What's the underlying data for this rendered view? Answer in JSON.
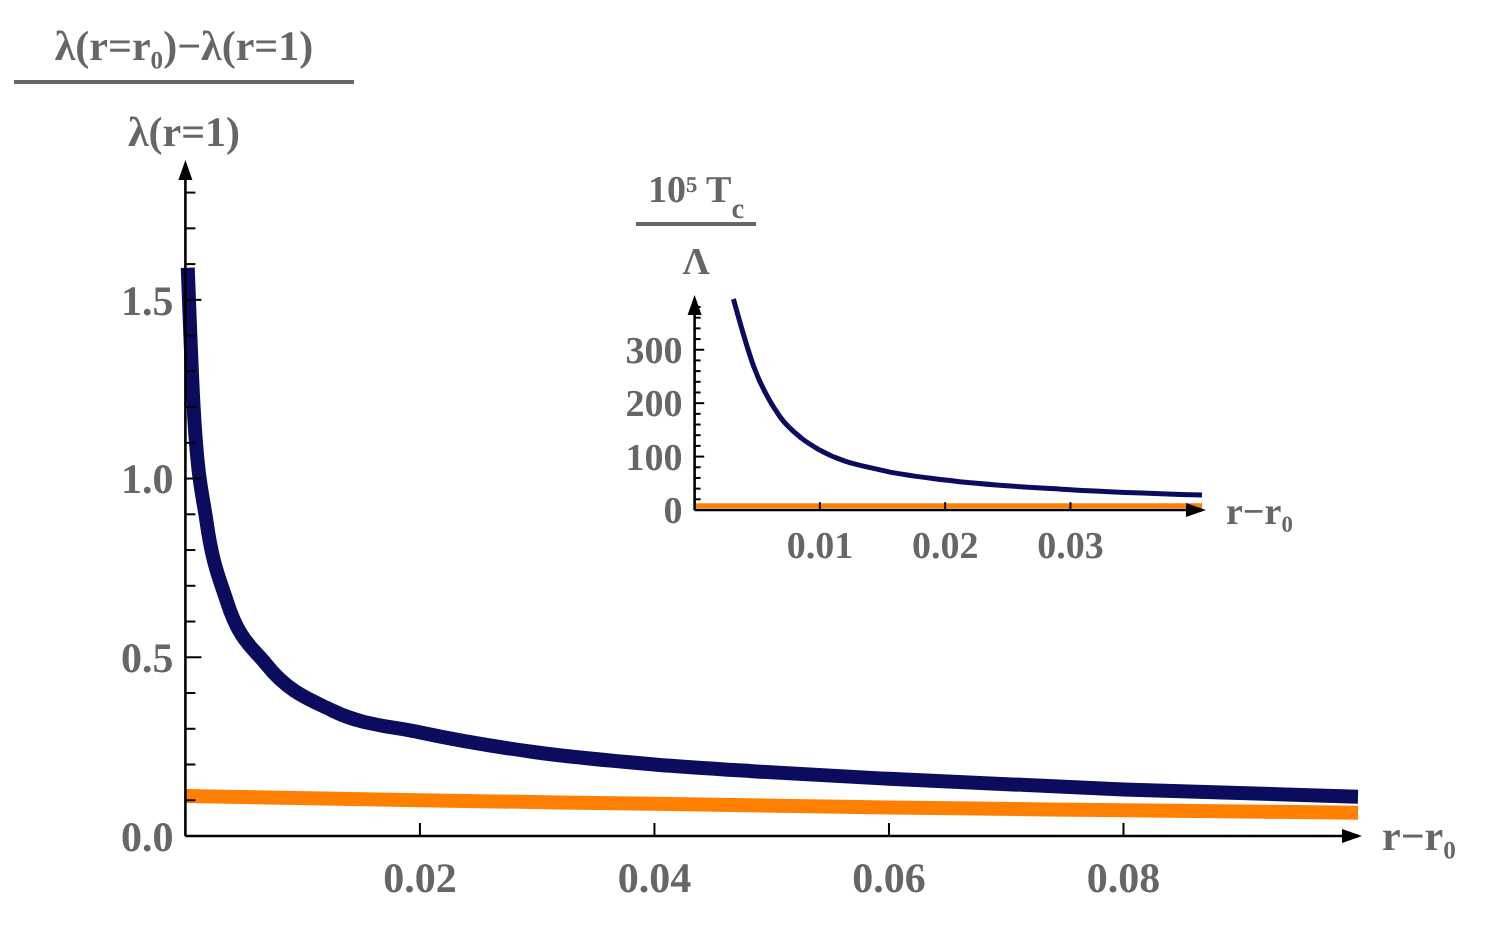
{
  "chart_data": [
    {
      "type": "line",
      "xlabel": "r−r₀",
      "ylabel": "λ(r=r₀)−λ(r=1)\nλ(r=1)",
      "xlim": [
        0,
        0.1
      ],
      "ylim": [
        0,
        1.88
      ],
      "xticks": [
        0.02,
        0.04,
        0.06,
        0.08
      ],
      "yticks": [
        {
          "value": 0,
          "label": "0.0"
        },
        {
          "value": 0.1,
          "label": null
        },
        {
          "value": 0.2,
          "label": null
        },
        {
          "value": 0.3,
          "label": null
        },
        {
          "value": 0.4,
          "label": null
        },
        0.5,
        {
          "value": 0.6,
          "label": null
        },
        {
          "value": 0.7,
          "label": null
        },
        {
          "value": 0.8,
          "label": null
        },
        {
          "value": 0.9,
          "label": null
        },
        {
          "value": 1,
          "label": "1.0"
        },
        {
          "value": 1.1,
          "label": null
        },
        {
          "value": 1.2,
          "label": null
        },
        {
          "value": 1.3,
          "label": null
        },
        {
          "value": 1.4,
          "label": null
        },
        1.5,
        {
          "value": 1.6,
          "label": null
        },
        {
          "value": 1.7,
          "label": null
        },
        {
          "value": 1.8,
          "label": null
        }
      ],
      "series": [
        {
          "color": "#0c0c5e",
          "x": [
            0.0002,
            0.0007,
            0.0018,
            0.0035,
            0.0069,
            0.0126,
            0.02,
            0.0297,
            0.04,
            0.049,
            0.06,
            0.08,
            0.1
          ],
          "values": [
            1.59,
            1.2,
            0.88,
            0.66,
            0.48,
            0.35,
            0.29,
            0.235,
            0.2,
            0.18,
            0.16,
            0.13,
            0.11
          ]
        },
        {
          "color": "#ff8000",
          "x": [
            0,
            0.02,
            0.04,
            0.06,
            0.08,
            0.1
          ],
          "values": [
            0.112,
            0.1,
            0.09,
            0.08,
            0.072,
            0.065
          ]
        }
      ]
    },
    {
      "type": "line",
      "xlabel": "r−r₀",
      "ylabel": "10⁵ T$_{c}$\nΛ",
      "xlim": [
        0,
        0.0405
      ],
      "ylim": [
        0,
        395
      ],
      "xticks": [
        0.01,
        0.02,
        0.03
      ],
      "yticks": [
        0,
        {
          "value": 20,
          "label": null
        },
        {
          "value": 40,
          "label": null
        },
        {
          "value": 60,
          "label": null
        },
        {
          "value": 80,
          "label": null
        },
        100,
        {
          "value": 120,
          "label": null
        },
        {
          "value": 140,
          "label": null
        },
        {
          "value": 160,
          "label": null
        },
        {
          "value": 180,
          "label": null
        },
        200,
        {
          "value": 220,
          "label": null
        },
        {
          "value": 240,
          "label": null
        },
        {
          "value": 260,
          "label": null
        },
        {
          "value": 280,
          "label": null
        },
        300,
        {
          "value": 320,
          "label": null
        },
        {
          "value": 340,
          "label": null
        },
        {
          "value": 360,
          "label": null
        },
        {
          "value": 380,
          "label": null
        }
      ],
      "series": [
        {
          "color": "#0c0c5e",
          "x": [
            0.0031,
            0.0047,
            0.0068,
            0.0085,
            0.01,
            0.0148,
            0.02,
            0.03,
            0.0405
          ],
          "values": [
            395,
            270,
            175,
            135,
            112,
            75,
            56,
            38,
            28
          ]
        },
        {
          "color": "#ff8000",
          "x": [
            0,
            0.01,
            0.02,
            0.03,
            0.0405
          ],
          "values": [
            8,
            8,
            8,
            8,
            8
          ]
        }
      ]
    }
  ]
}
